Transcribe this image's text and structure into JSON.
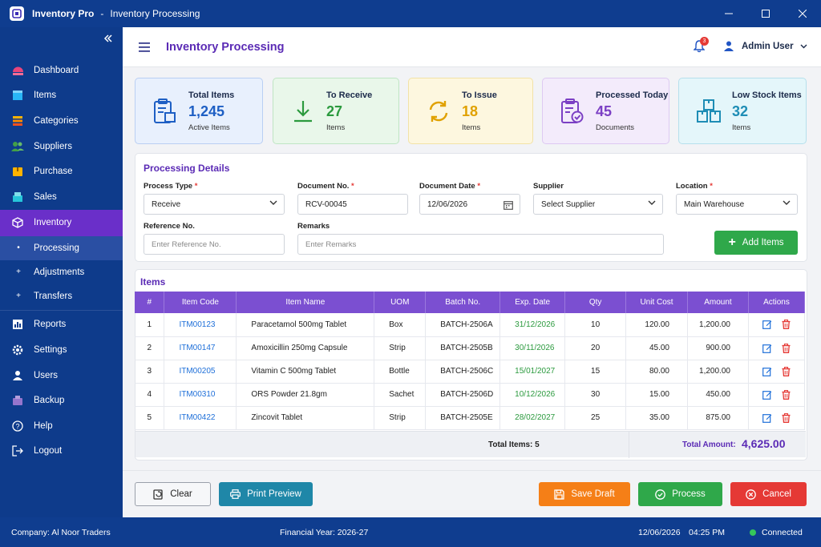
{
  "window": {
    "app_name": "Inventory Pro",
    "separator": "-",
    "subtitle": "Inventory Processing"
  },
  "sidebar": {
    "items": [
      {
        "label": "Dashboard",
        "icon": "dashboard-icon"
      },
      {
        "label": "Items",
        "icon": "box-icon"
      },
      {
        "label": "Categories",
        "icon": "layers-icon"
      },
      {
        "label": "Suppliers",
        "icon": "users-icon"
      },
      {
        "label": "Purchase",
        "icon": "package-icon"
      },
      {
        "label": "Sales",
        "icon": "cart-icon"
      },
      {
        "label": "Inventory",
        "icon": "cube-icon"
      }
    ],
    "sub_items": [
      {
        "label": "Processing",
        "marker": "•"
      },
      {
        "label": "Adjustments",
        "marker": "+"
      },
      {
        "label": "Transfers",
        "marker": "+"
      }
    ],
    "items_bottom": [
      {
        "label": "Reports",
        "icon": "chart-icon"
      },
      {
        "label": "Settings",
        "icon": "gear-icon"
      },
      {
        "label": "Users",
        "icon": "user-group-icon"
      },
      {
        "label": "Backup",
        "icon": "backup-icon"
      },
      {
        "label": "Help",
        "icon": "help-icon"
      },
      {
        "label": "Logout",
        "icon": "logout-icon"
      }
    ]
  },
  "header": {
    "title": "Inventory Processing",
    "notification_count": "3",
    "user_name": "Admin User"
  },
  "stats": [
    {
      "title": "Total Items",
      "value": "1,245",
      "sub": "Active Items",
      "color": "#1e5fc4",
      "bg": "#e8f0fd",
      "border": "#b9cff3",
      "icon": "clipboard-box-icon"
    },
    {
      "title": "To Receive",
      "value": "27",
      "sub": "Items",
      "color": "#2b9a3e",
      "bg": "#e9f7ea",
      "border": "#bfe5c4",
      "icon": "download-arrow-icon"
    },
    {
      "title": "To Issue",
      "value": "18",
      "sub": "Items",
      "color": "#e0a100",
      "bg": "#fdf7df",
      "border": "#f2e2a6",
      "icon": "refresh-icon"
    },
    {
      "title": "Processed Today",
      "value": "45",
      "sub": "Documents",
      "color": "#7b3fc4",
      "bg": "#f3ebfb",
      "border": "#ddc9f2",
      "icon": "clipboard-check-icon"
    },
    {
      "title": "Low Stock Items",
      "value": "32",
      "sub": "Items",
      "color": "#1e8db5",
      "bg": "#e4f6fa",
      "border": "#b6e0ec",
      "icon": "boxes-icon"
    }
  ],
  "processing": {
    "title": "Processing Details",
    "process_type": {
      "label": "Process Type",
      "value": "Receive"
    },
    "document_no": {
      "label": "Document No.",
      "value": "RCV-00045"
    },
    "document_date": {
      "label": "Document Date",
      "value": "12/06/2026"
    },
    "supplier": {
      "label": "Supplier",
      "value": "Select Supplier"
    },
    "location": {
      "label": "Location",
      "value": "Main Warehouse"
    },
    "reference": {
      "label": "Reference No.",
      "placeholder": "Enter Reference No."
    },
    "remarks": {
      "label": "Remarks",
      "placeholder": "Enter Remarks"
    },
    "required_mark": "*",
    "add_items": "Add Items"
  },
  "items": {
    "title": "Items",
    "columns": [
      "#",
      "Item Code",
      "Item Name",
      "UOM",
      "Batch No.",
      "Exp. Date",
      "Qty",
      "Unit Cost",
      "Amount",
      "Actions"
    ],
    "rows": [
      [
        "1",
        "ITM00123",
        "Paracetamol 500mg Tablet",
        "Box",
        "BATCH-2506A",
        "31/12/2026",
        "10",
        "120.00",
        "1,200.00"
      ],
      [
        "2",
        "ITM00147",
        "Amoxicillin 250mg Capsule",
        "Strip",
        "BATCH-2505B",
        "30/11/2026",
        "20",
        "45.00",
        "900.00"
      ],
      [
        "3",
        "ITM00205",
        "Vitamin C 500mg Tablet",
        "Bottle",
        "BATCH-2506C",
        "15/01/2027",
        "15",
        "80.00",
        "1,200.00"
      ],
      [
        "4",
        "ITM00310",
        "ORS Powder 21.8gm",
        "Sachet",
        "BATCH-2506D",
        "10/12/2026",
        "30",
        "15.00",
        "450.00"
      ],
      [
        "5",
        "ITM00422",
        "Zincovit Tablet",
        "Strip",
        "BATCH-2505E",
        "28/02/2027",
        "25",
        "35.00",
        "875.00"
      ]
    ],
    "total_items": "Total Items: 5",
    "total_amount_label": "Total Amount:",
    "total_amount": "4,625.00"
  },
  "actions": {
    "clear": "Clear",
    "print_preview": "Print Preview",
    "save_draft": "Save Draft",
    "process": "Process",
    "cancel": "Cancel"
  },
  "status": {
    "company": "Company: Al Noor Traders",
    "financial_year": "Financial Year: 2026-27",
    "date": "12/06/2026",
    "time": "04:25 PM",
    "connection": "Connected"
  },
  "colors": {
    "accent": "#5b2bb5",
    "table_header": "#7b4fd1",
    "nav_bg": "#0e3b8b",
    "nav_active": "#6a2fc9",
    "success": "#2fa84a",
    "danger": "#e53935",
    "warning": "#f57f17",
    "info": "#1f87a8"
  }
}
